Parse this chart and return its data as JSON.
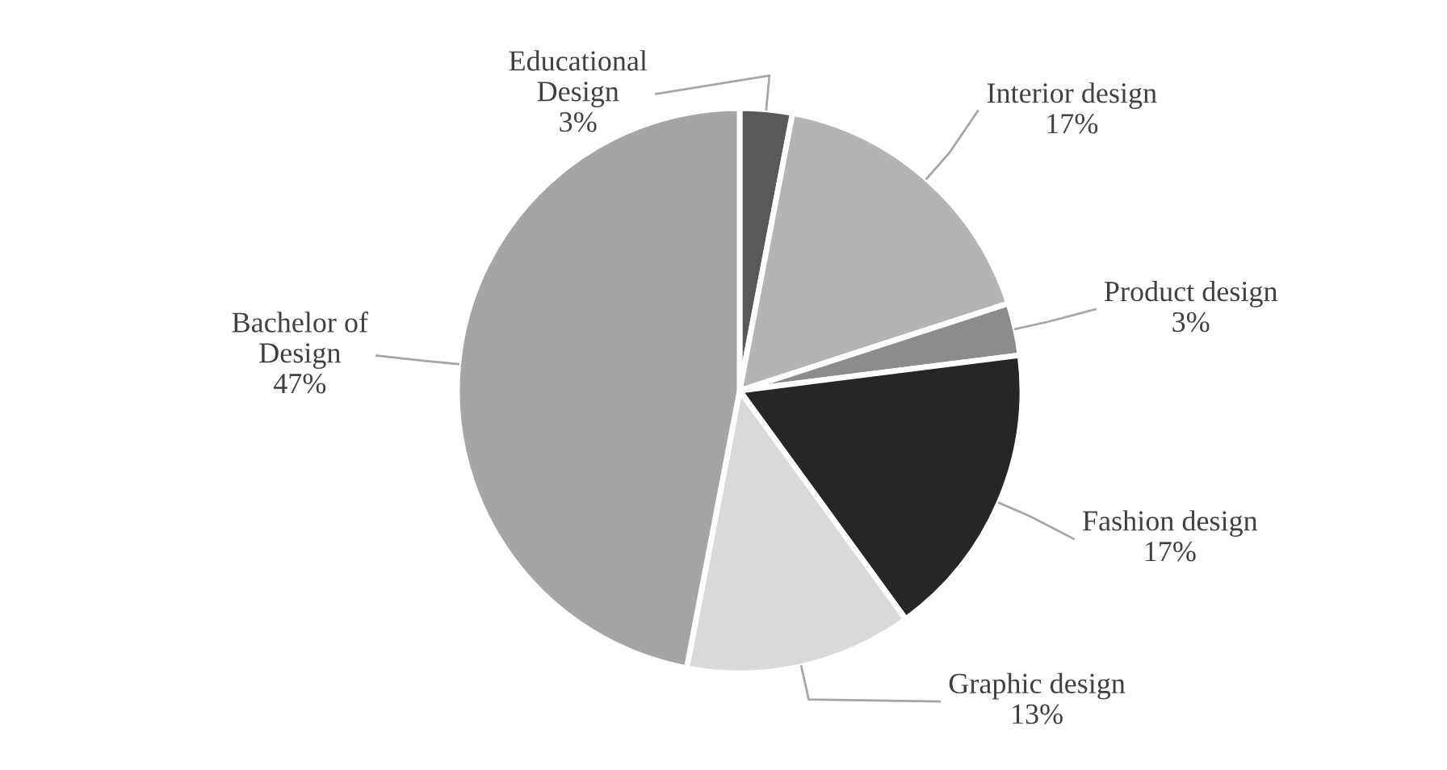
{
  "chart_data": {
    "type": "pie",
    "categories": [
      "Educational\nDesign",
      "Interior design",
      "Product design",
      "Fashion design",
      "Graphic design",
      "Bachelor of\nDesign"
    ],
    "values": [
      3,
      17,
      3,
      17,
      13,
      47
    ],
    "value_labels": [
      "3%",
      "17%",
      "3%",
      "17%",
      "13%",
      "47%"
    ],
    "colors": [
      "#595959",
      "#b4b4b4",
      "#8c8c8c",
      "#262626",
      "#d9d9d9",
      "#a5a5a5"
    ],
    "legend": false
  }
}
